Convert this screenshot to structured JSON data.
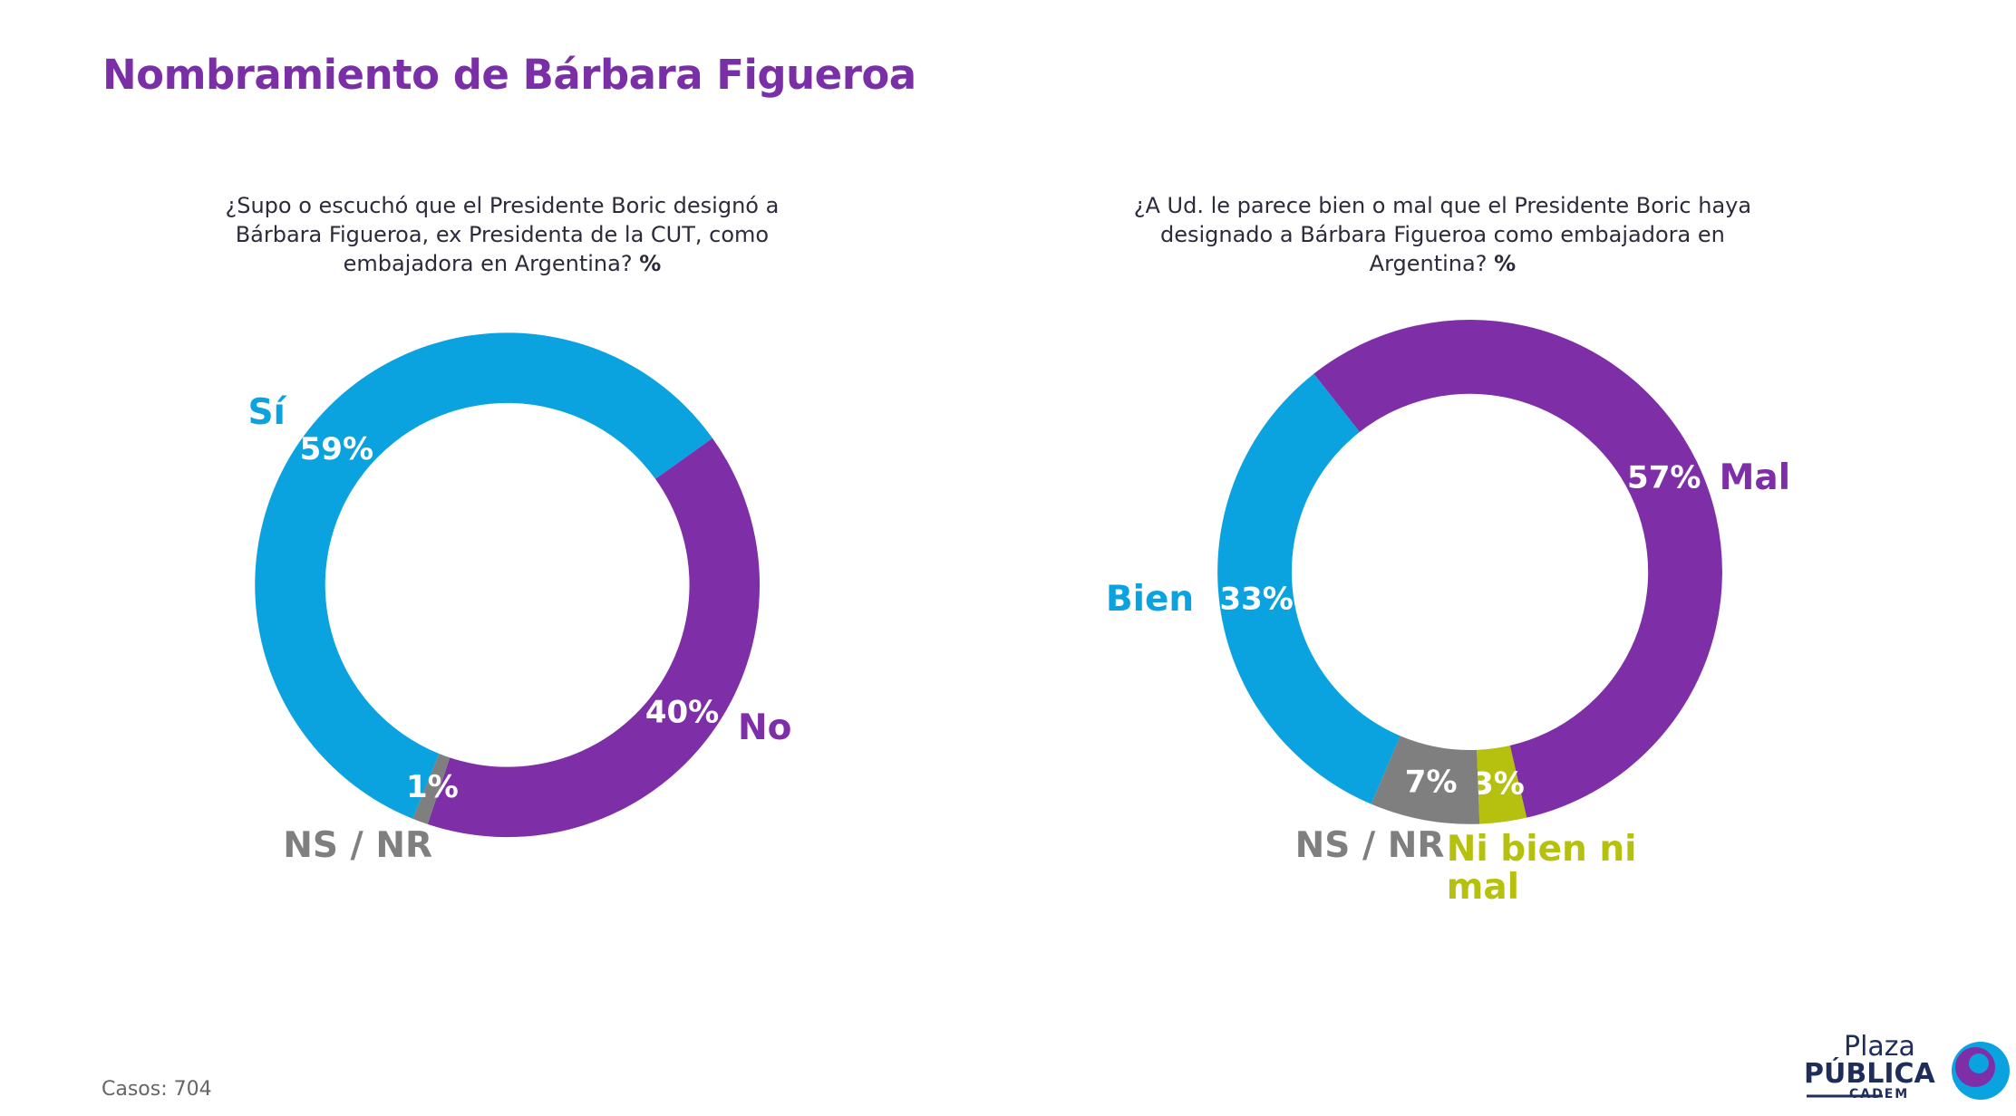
{
  "title": "Nombramiento de Bárbara Figueroa",
  "footnote": "Casos: 704",
  "logo": {
    "top": "Plaza",
    "middle": "PÚBLICA",
    "bottom": "CADEM"
  },
  "chart_data": [
    {
      "type": "donut",
      "title": "¿Supo o escuchó que el Presidente Boric designó a Bárbara Figueroa, ex Presidenta de la CUT, como embajadora en Argentina?",
      "unit": "%",
      "categories": [
        "Sí",
        "No",
        "NS / NR"
      ],
      "values": [
        59,
        40,
        1
      ],
      "value_labels": [
        "59%",
        "40%",
        "1%"
      ],
      "colors": [
        "#0aa3df",
        "#7e2fa8",
        "#7f7f7f"
      ]
    },
    {
      "type": "donut",
      "title": "¿A Ud. le parece bien o mal que el Presidente Boric haya designado a Bárbara Figueroa como embajadora en Argentina?",
      "unit": "%",
      "categories": [
        "Bien",
        "Mal",
        "Ni bien ni mal",
        "NS / NR"
      ],
      "values": [
        33,
        57,
        3,
        7
      ],
      "value_labels": [
        "33%",
        "57%",
        "3%",
        "7%"
      ],
      "colors": [
        "#0aa3df",
        "#7e2fa8",
        "#b5c10e",
        "#7f7f7f"
      ]
    }
  ]
}
